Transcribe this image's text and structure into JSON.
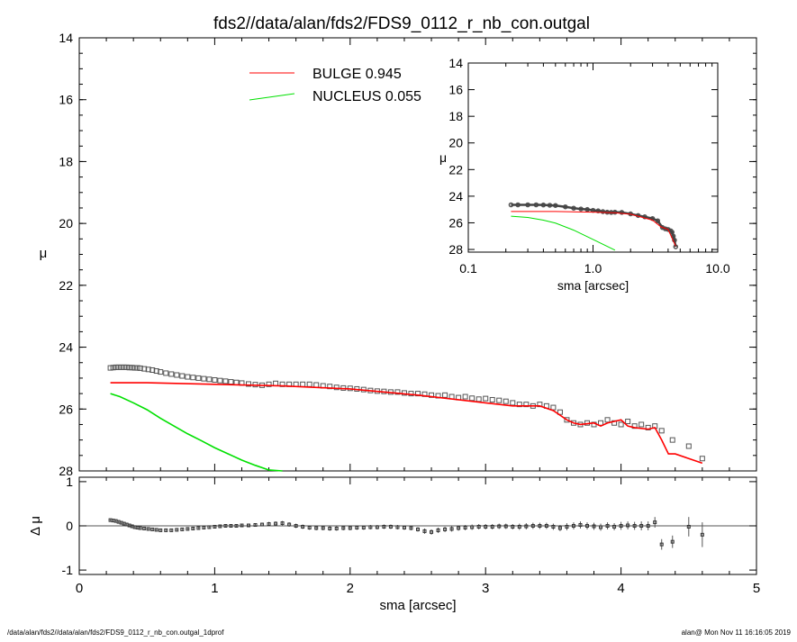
{
  "title": "fds2//data/alan/fds2/FDS9_0112_r_nb_con.outgal",
  "footer_left": "/data/alan/fds2//data/alan/fds2/FDS9_0112_r_nb_con.outgal_1dprof",
  "footer_right": "alan@  Mon Nov 11 16:16:05 2019",
  "colors": {
    "bulge": "#ff0000",
    "nucleus": "#00e000",
    "data": "#555555",
    "axes": "#000000"
  },
  "chart_data": [
    {
      "id": "main-profile",
      "type": "line",
      "xlabel": "",
      "ylabel": "μ",
      "xlim": [
        0,
        5
      ],
      "ylim": [
        28,
        14
      ],
      "y_inverted": true,
      "x_ticks": [
        0,
        1,
        2,
        3,
        4,
        5
      ],
      "y_ticks": [
        14,
        16,
        18,
        20,
        22,
        24,
        26,
        28
      ],
      "legend": [
        {
          "name": "BULGE",
          "value": "0.945",
          "color": "#ff0000"
        },
        {
          "name": "NUCLEUS",
          "value": "0.055",
          "color": "#00e000"
        }
      ],
      "legend_position": "top-center",
      "series": [
        {
          "name": "BULGE",
          "kind": "model",
          "color": "#ff0000",
          "x": [
            0.23,
            0.5,
            1.0,
            1.5,
            2.0,
            2.5,
            3.0,
            3.2,
            3.4,
            3.5,
            3.6,
            3.65,
            3.7,
            3.8,
            3.85,
            3.9,
            3.95,
            4.0,
            4.05,
            4.1,
            4.2,
            4.25,
            4.3,
            4.35,
            4.4,
            4.5,
            4.6
          ],
          "y": [
            25.15,
            25.15,
            25.2,
            25.25,
            25.35,
            25.55,
            25.8,
            25.9,
            25.9,
            26.05,
            26.35,
            26.45,
            26.5,
            26.45,
            26.55,
            26.45,
            26.4,
            26.35,
            26.55,
            26.6,
            26.65,
            26.6,
            27.0,
            27.45,
            27.45,
            27.6,
            27.75
          ]
        },
        {
          "name": "NUCLEUS",
          "kind": "model",
          "color": "#00e000",
          "x": [
            0.23,
            0.3,
            0.4,
            0.5,
            0.6,
            0.7,
            0.8,
            0.9,
            1.0,
            1.1,
            1.2,
            1.3,
            1.4,
            1.5
          ],
          "y": [
            25.5,
            25.6,
            25.8,
            26.02,
            26.3,
            26.55,
            26.8,
            27.02,
            27.25,
            27.45,
            27.65,
            27.82,
            27.97,
            28.05
          ]
        },
        {
          "name": "data",
          "kind": "points",
          "color": "#555555",
          "x": [
            0.23,
            0.25,
            0.27,
            0.29,
            0.31,
            0.33,
            0.35,
            0.37,
            0.39,
            0.41,
            0.43,
            0.45,
            0.48,
            0.51,
            0.54,
            0.57,
            0.6,
            0.64,
            0.68,
            0.72,
            0.76,
            0.8,
            0.84,
            0.88,
            0.92,
            0.96,
            1.0,
            1.04,
            1.08,
            1.12,
            1.16,
            1.2,
            1.25,
            1.3,
            1.35,
            1.4,
            1.45,
            1.5,
            1.55,
            1.6,
            1.65,
            1.7,
            1.75,
            1.8,
            1.85,
            1.9,
            1.95,
            2.0,
            2.05,
            2.1,
            2.15,
            2.2,
            2.25,
            2.3,
            2.35,
            2.4,
            2.45,
            2.5,
            2.55,
            2.6,
            2.65,
            2.7,
            2.75,
            2.8,
            2.85,
            2.9,
            2.95,
            3.0,
            3.05,
            3.1,
            3.15,
            3.2,
            3.25,
            3.3,
            3.35,
            3.4,
            3.45,
            3.5,
            3.55,
            3.6,
            3.65,
            3.7,
            3.75,
            3.8,
            3.85,
            3.9,
            3.95,
            4.0,
            4.05,
            4.1,
            4.15,
            4.2,
            4.25,
            4.3,
            4.38,
            4.5,
            4.6
          ],
          "y": [
            24.67,
            24.66,
            24.65,
            24.65,
            24.65,
            24.65,
            24.65,
            24.66,
            24.66,
            24.67,
            24.67,
            24.68,
            24.7,
            24.72,
            24.74,
            24.77,
            24.8,
            24.84,
            24.87,
            24.9,
            24.93,
            24.96,
            24.98,
            25.0,
            25.02,
            25.04,
            25.06,
            25.08,
            25.1,
            25.12,
            25.14,
            25.16,
            25.19,
            25.21,
            25.23,
            25.2,
            25.17,
            25.2,
            25.2,
            25.2,
            25.2,
            25.2,
            25.22,
            25.25,
            25.27,
            25.3,
            25.32,
            25.33,
            25.35,
            25.37,
            25.4,
            25.42,
            25.43,
            25.45,
            25.45,
            25.48,
            25.5,
            25.5,
            25.52,
            25.55,
            25.57,
            25.55,
            25.6,
            25.63,
            25.6,
            25.65,
            25.68,
            25.66,
            25.7,
            25.72,
            25.75,
            25.8,
            25.85,
            25.85,
            25.9,
            25.85,
            25.9,
            25.95,
            26.1,
            26.35,
            26.45,
            26.5,
            26.45,
            26.5,
            26.45,
            26.35,
            26.45,
            26.5,
            26.4,
            26.55,
            26.5,
            26.6,
            26.55,
            26.7,
            27.0,
            27.2,
            27.6
          ]
        }
      ]
    },
    {
      "id": "residuals",
      "type": "scatter",
      "xlabel": "sma [arcsec]",
      "ylabel": "Δ μ",
      "xlim": [
        0,
        5
      ],
      "ylim": [
        -1.1,
        1.1
      ],
      "x_ticks": [
        0,
        1,
        2,
        3,
        4,
        5
      ],
      "y_ticks": [
        1,
        0,
        -1
      ],
      "zero_line": true,
      "series": [
        {
          "name": "residual",
          "x": [
            0.23,
            0.25,
            0.27,
            0.29,
            0.31,
            0.33,
            0.35,
            0.37,
            0.39,
            0.41,
            0.43,
            0.45,
            0.48,
            0.51,
            0.54,
            0.57,
            0.6,
            0.64,
            0.68,
            0.72,
            0.76,
            0.8,
            0.84,
            0.88,
            0.92,
            0.96,
            1.0,
            1.04,
            1.08,
            1.12,
            1.16,
            1.2,
            1.25,
            1.3,
            1.35,
            1.4,
            1.45,
            1.5,
            1.55,
            1.6,
            1.65,
            1.7,
            1.75,
            1.8,
            1.85,
            1.9,
            1.95,
            2.0,
            2.05,
            2.1,
            2.15,
            2.2,
            2.25,
            2.3,
            2.35,
            2.4,
            2.45,
            2.5,
            2.55,
            2.6,
            2.65,
            2.7,
            2.75,
            2.8,
            2.85,
            2.9,
            2.95,
            3.0,
            3.05,
            3.1,
            3.15,
            3.2,
            3.25,
            3.3,
            3.35,
            3.4,
            3.45,
            3.5,
            3.55,
            3.6,
            3.65,
            3.7,
            3.75,
            3.8,
            3.85,
            3.9,
            3.95,
            4.0,
            4.05,
            4.1,
            4.15,
            4.2,
            4.25,
            4.3,
            4.38,
            4.5,
            4.6
          ],
          "y": [
            0.13,
            0.12,
            0.11,
            0.09,
            0.07,
            0.05,
            0.03,
            0.01,
            -0.01,
            -0.03,
            -0.04,
            -0.05,
            -0.06,
            -0.07,
            -0.08,
            -0.09,
            -0.1,
            -0.1,
            -0.1,
            -0.09,
            -0.08,
            -0.07,
            -0.06,
            -0.05,
            -0.04,
            -0.03,
            -0.02,
            -0.01,
            0.0,
            0.0,
            0.0,
            0.01,
            0.01,
            0.02,
            0.03,
            0.04,
            0.05,
            0.06,
            0.03,
            0.0,
            -0.02,
            -0.04,
            -0.05,
            -0.05,
            -0.06,
            -0.06,
            -0.05,
            -0.05,
            -0.04,
            -0.04,
            -0.03,
            -0.03,
            -0.02,
            -0.02,
            -0.03,
            -0.04,
            -0.05,
            -0.08,
            -0.12,
            -0.14,
            -0.1,
            -0.08,
            -0.07,
            -0.05,
            -0.04,
            -0.03,
            -0.02,
            -0.02,
            -0.02,
            -0.01,
            -0.01,
            -0.02,
            -0.02,
            -0.01,
            0.0,
            0.0,
            0.0,
            -0.02,
            -0.05,
            -0.02,
            0.0,
            0.02,
            0.0,
            -0.01,
            -0.03,
            0.0,
            -0.02,
            0.0,
            0.01,
            0.0,
            0.0,
            0.0,
            0.08,
            -0.42,
            -0.36,
            -0.02,
            -0.2
          ],
          "err": [
            0.02,
            0.02,
            0.02,
            0.02,
            0.02,
            0.02,
            0.02,
            0.02,
            0.02,
            0.02,
            0.02,
            0.02,
            0.02,
            0.02,
            0.02,
            0.02,
            0.02,
            0.02,
            0.02,
            0.02,
            0.02,
            0.03,
            0.03,
            0.03,
            0.03,
            0.03,
            0.03,
            0.03,
            0.03,
            0.03,
            0.03,
            0.04,
            0.04,
            0.04,
            0.04,
            0.05,
            0.05,
            0.05,
            0.05,
            0.05,
            0.05,
            0.05,
            0.05,
            0.05,
            0.05,
            0.05,
            0.05,
            0.05,
            0.05,
            0.05,
            0.05,
            0.05,
            0.05,
            0.05,
            0.05,
            0.05,
            0.05,
            0.05,
            0.06,
            0.06,
            0.06,
            0.06,
            0.06,
            0.06,
            0.06,
            0.06,
            0.06,
            0.06,
            0.06,
            0.06,
            0.06,
            0.06,
            0.07,
            0.07,
            0.07,
            0.07,
            0.07,
            0.07,
            0.07,
            0.08,
            0.08,
            0.08,
            0.08,
            0.08,
            0.08,
            0.08,
            0.08,
            0.09,
            0.09,
            0.09,
            0.1,
            0.1,
            0.12,
            0.12,
            0.14,
            0.22,
            0.28
          ]
        }
      ]
    },
    {
      "id": "inset-log-profile",
      "type": "line",
      "xlabel": "sma [arcsec]",
      "ylabel": "μ",
      "x_scale": "log",
      "xlim": [
        0.1,
        10.0
      ],
      "ylim": [
        28.2,
        14
      ],
      "y_inverted": true,
      "x_ticks": [
        "0.1",
        "1.0",
        "10.0"
      ],
      "y_ticks": [
        14,
        16,
        18,
        20,
        22,
        24,
        26,
        28
      ],
      "series": [
        {
          "name": "BULGE",
          "color": "#ff0000",
          "x": [
            0.22,
            0.5,
            1.0,
            1.5,
            2.0,
            3.0,
            3.5,
            4.0,
            4.6
          ],
          "y": [
            25.15,
            25.15,
            25.2,
            25.25,
            25.35,
            25.8,
            26.3,
            26.5,
            27.75
          ]
        },
        {
          "name": "NUCLEUS",
          "color": "#00e000",
          "x": [
            0.22,
            0.3,
            0.4,
            0.5,
            0.7,
            1.0,
            1.5
          ],
          "y": [
            25.5,
            25.6,
            25.8,
            26.02,
            26.55,
            27.25,
            28.05
          ]
        },
        {
          "name": "data",
          "color": "#555555",
          "x": [
            0.22,
            0.25,
            0.3,
            0.35,
            0.4,
            0.45,
            0.5,
            0.6,
            0.7,
            0.8,
            0.9,
            1.0,
            1.1,
            1.2,
            1.3,
            1.4,
            1.5,
            1.7,
            2.0,
            2.3,
            2.6,
            3.0,
            3.3,
            3.6,
            3.8,
            4.0,
            4.2,
            4.3,
            4.4,
            4.5,
            4.6
          ],
          "y": [
            24.65,
            24.65,
            24.65,
            24.65,
            24.66,
            24.68,
            24.7,
            24.8,
            24.9,
            24.96,
            25.0,
            25.06,
            25.1,
            25.16,
            25.2,
            25.22,
            25.2,
            25.22,
            25.33,
            25.45,
            25.55,
            25.68,
            25.85,
            26.35,
            26.45,
            26.5,
            26.6,
            26.7,
            27.0,
            27.3,
            27.8
          ]
        }
      ]
    }
  ]
}
